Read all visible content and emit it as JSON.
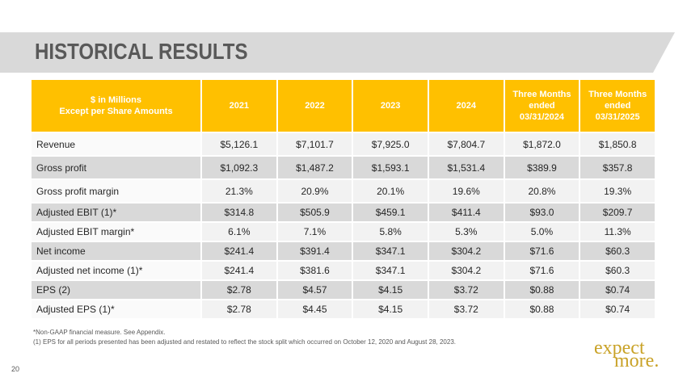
{
  "header": {
    "title": "HISTORICAL RESULTS"
  },
  "table": {
    "columns": [
      [
        "$ in Millions",
        "Except per Share Amounts"
      ],
      [
        "2021"
      ],
      [
        "2022"
      ],
      [
        "2023"
      ],
      [
        "2024"
      ],
      [
        "Three Months",
        "ended",
        "03/31/2024"
      ],
      [
        "Three Months",
        "ended",
        "03/31/2025"
      ]
    ],
    "rows": [
      [
        "Revenue",
        "$5,126.1",
        "$7,101.7",
        "$7,925.0",
        "$7,804.7",
        "$1,872.0",
        "$1,850.8"
      ],
      [
        "Gross profit",
        "$1,092.3",
        "$1,487.2",
        "$1,593.1",
        "$1,531.4",
        "$389.9",
        "$357.8"
      ],
      [
        "Gross profit margin",
        "21.3%",
        "20.9%",
        "20.1%",
        "19.6%",
        "20.8%",
        "19.3%"
      ],
      [
        "Adjusted EBIT (1)*",
        "$314.8",
        "$505.9",
        "$459.1",
        "$411.4",
        "$93.0",
        "$209.7"
      ],
      [
        "Adjusted EBIT margin*",
        "6.1%",
        "7.1%",
        "5.8%",
        "5.3%",
        "5.0%",
        "11.3%"
      ],
      [
        "Net income",
        "$241.4",
        "$391.4",
        "$347.1",
        "$304.2",
        "$71.6",
        "$60.3"
      ],
      [
        "Adjusted net income (1)*",
        "$241.4",
        "$381.6",
        "$347.1",
        "$304.2",
        "$71.6",
        "$60.3"
      ],
      [
        "EPS (2)",
        "$2.78",
        "$4.57",
        "$4.15",
        "$3.72",
        "$0.88",
        "$0.74"
      ],
      [
        "Adjusted EPS (1)*",
        "$2.78",
        "$4.45",
        "$4.15",
        "$3.72",
        "$0.88",
        "$0.74"
      ]
    ]
  },
  "footnotes": [
    "*Non-GAAP financial measure.  See Appendix.",
    "(1)  EPS for all periods presented has been adjusted and restated to reflect the stock split which occurred on October 12, 2020 and August 28, 2023."
  ],
  "page_number": "20",
  "logo": [
    "expect",
    "more."
  ]
}
